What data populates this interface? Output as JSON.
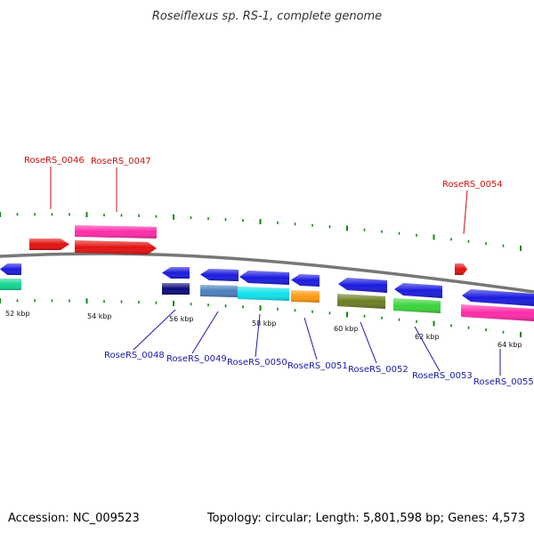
{
  "title": "Roseiflexus sp. RS-1, complete genome",
  "footer": {
    "accession": "Accession: NC_009523",
    "topology": "Topology: circular; Length: 5,801,598 bp; Genes: 4,573"
  },
  "scale_ticks": [
    "52 kbp",
    "54 kbp",
    "56 kbp",
    "58 kbp",
    "60 kbp",
    "62 kbp",
    "64 kbp"
  ],
  "colors": {
    "backbone": "#777777",
    "tick": "#118811",
    "forward_label": "#cc1111",
    "reverse_label": "#1a1aaa"
  },
  "labels": {
    "forward": [
      "RoseRS_0046",
      "RoseRS_0047",
      "RoseRS_0054"
    ],
    "reverse": [
      "RoseRS_0048",
      "RoseRS_0049",
      "RoseRS_0050",
      "RoseRS_0051",
      "RoseRS_0052",
      "RoseRS_0053",
      "RoseRS_0055"
    ]
  },
  "genes": [
    {
      "name": "left-red-arrow",
      "color": "#e41010",
      "shape": "arrow-right"
    },
    {
      "name": "pink-bar-forward",
      "color": "#ff2aa8",
      "shape": "bar"
    },
    {
      "name": "red-arrow-forward",
      "color": "#e41010",
      "shape": "arrow-right"
    },
    {
      "name": "small-red-arrow",
      "color": "#e41010",
      "shape": "arrow-right"
    },
    {
      "name": "left-blue-arrow",
      "color": "#1a1adf",
      "shape": "arrow-left"
    },
    {
      "name": "left-teal-bar",
      "color": "#12d890",
      "shape": "bar"
    },
    {
      "name": "blue-arrow-0048",
      "color": "#1a1adf",
      "shape": "arrow-left"
    },
    {
      "name": "navy-bar-0048",
      "color": "#0a0a7a",
      "shape": "bar"
    },
    {
      "name": "blue-arrow-0049",
      "color": "#1a1adf",
      "shape": "arrow-left"
    },
    {
      "name": "steelblue-bar-0049",
      "color": "#4a7fbf",
      "shape": "bar"
    },
    {
      "name": "blue-arrow-0050",
      "color": "#1a1adf",
      "shape": "arrow-left"
    },
    {
      "name": "cyan-bar-0050",
      "color": "#10e2ea",
      "shape": "bar"
    },
    {
      "name": "blue-arrow-0051",
      "color": "#1a1adf",
      "shape": "arrow-left"
    },
    {
      "name": "orange-bar-0051",
      "color": "#ff9a10",
      "shape": "bar"
    },
    {
      "name": "blue-arrow-0052",
      "color": "#1a1adf",
      "shape": "arrow-left"
    },
    {
      "name": "olive-bar-0052",
      "color": "#6b7d22",
      "shape": "bar"
    },
    {
      "name": "blue-arrow-0053",
      "color": "#1a1adf",
      "shape": "arrow-left"
    },
    {
      "name": "green-bar-0053",
      "color": "#3ad43a",
      "shape": "bar"
    },
    {
      "name": "blue-arrow-0055",
      "color": "#1a1adf",
      "shape": "arrow-left"
    },
    {
      "name": "pink-bar-0055",
      "color": "#ff2aa8",
      "shape": "bar"
    }
  ]
}
